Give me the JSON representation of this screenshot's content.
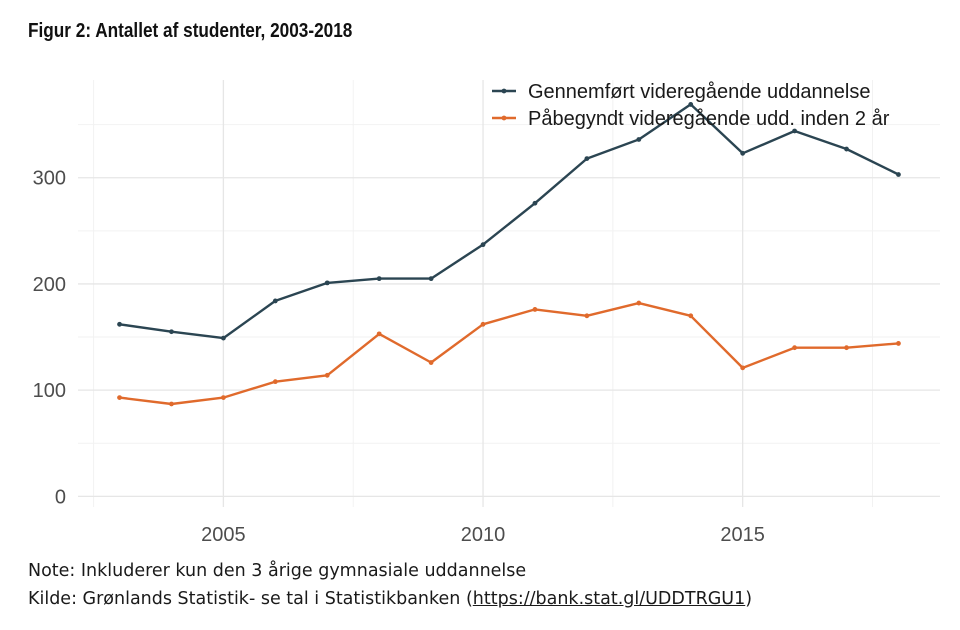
{
  "figure": {
    "title": "Figur 2: Antallet af studenter, 2003-2018"
  },
  "chart_data": {
    "type": "line",
    "title": "Figur 2: Antallet af studenter, 2003-2018",
    "xlabel": "",
    "ylabel": "",
    "x": [
      2003,
      2004,
      2005,
      2006,
      2007,
      2008,
      2009,
      2010,
      2011,
      2012,
      2013,
      2014,
      2015,
      2016,
      2017,
      2018
    ],
    "xticks": [
      2005,
      2010,
      2015
    ],
    "yticks": [
      0,
      100,
      200,
      300
    ],
    "xlim": [
      2002.2,
      2018.8
    ],
    "ylim": [
      -10,
      392
    ],
    "grid": true,
    "legend_position": "top-right",
    "series": [
      {
        "name": "Gennemført videregående uddannelse",
        "color": "#2b4552",
        "values": [
          162,
          155,
          149,
          184,
          201,
          205,
          205,
          237,
          276,
          318,
          336,
          369,
          323,
          344,
          327,
          303
        ]
      },
      {
        "name": "Påbegyndt videregående udd. inden 2 år",
        "color": "#e06a2c",
        "values": [
          93,
          87,
          93,
          108,
          114,
          153,
          126,
          162,
          176,
          170,
          182,
          170,
          121,
          140,
          140,
          144
        ]
      }
    ]
  },
  "footer": {
    "note": "Note: Inkluderer kun den 3 årige gymnasiale uddannelse",
    "source_prefix": "Kilde: Grønlands Statistik- se tal i Statistikbanken (",
    "source_link": "https://bank.stat.gl/UDDTRGU1",
    "source_suffix": ")"
  }
}
